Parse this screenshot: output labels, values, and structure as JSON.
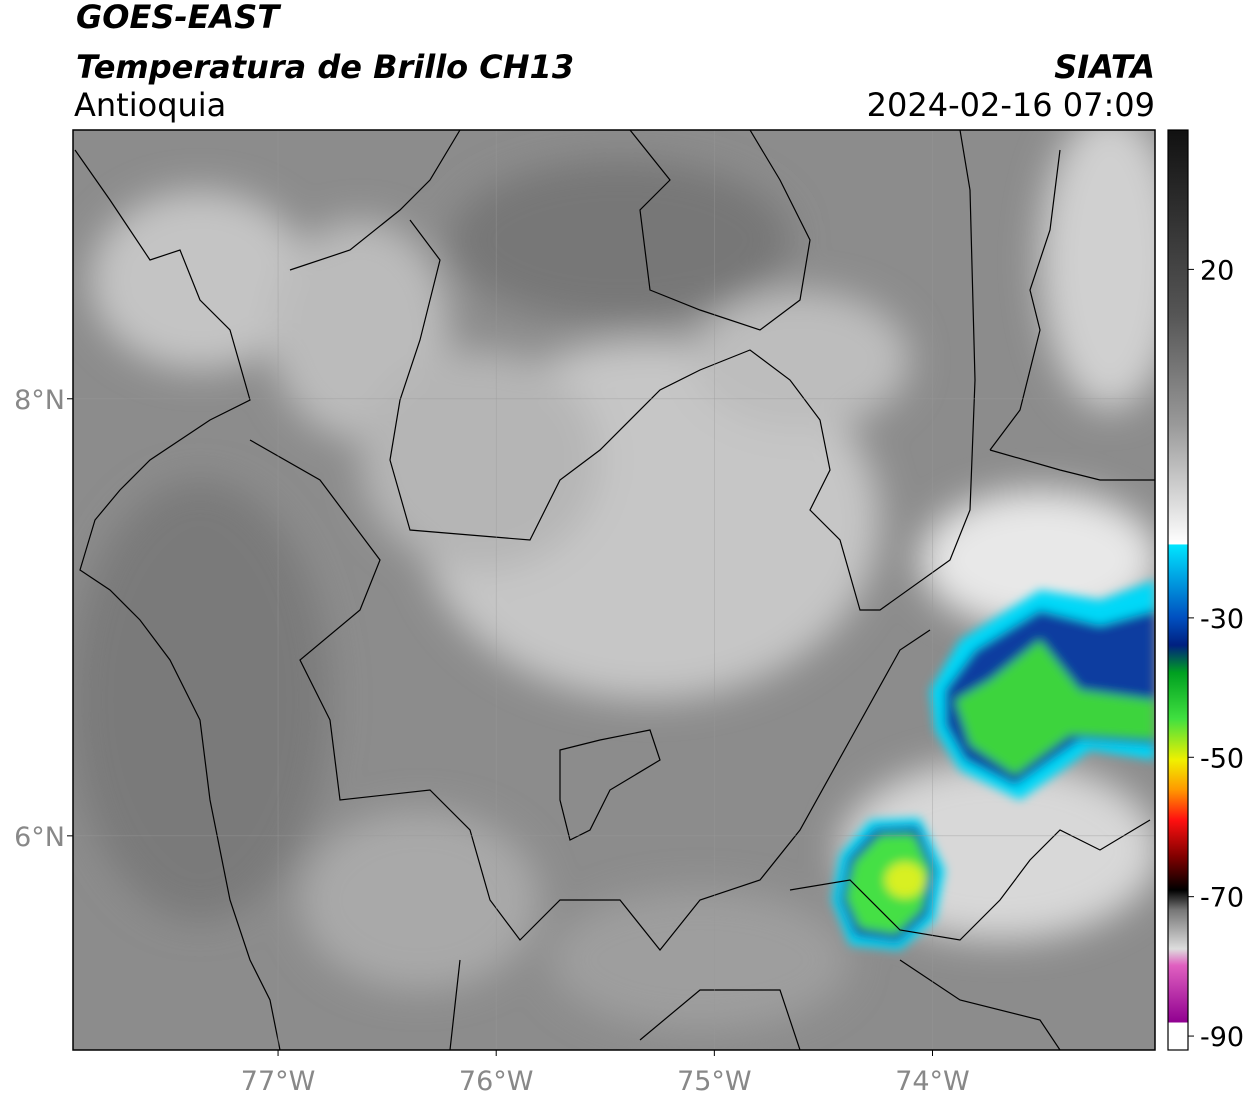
{
  "header": {
    "title": "GOES-EAST",
    "subtitle": "Temperatura de Brillo CH13",
    "region": "Antioquia",
    "source": "SIATA",
    "timestamp": "2024-02-16 07:09"
  },
  "map": {
    "xlim": [
      -77.94,
      -72.98
    ],
    "ylim": [
      5.02,
      9.23
    ],
    "xticks": [
      {
        "value": -77,
        "label": "77°W"
      },
      {
        "value": -76,
        "label": "76°W"
      },
      {
        "value": -75,
        "label": "75°W"
      },
      {
        "value": -74,
        "label": "74°W"
      }
    ],
    "yticks": [
      {
        "value": 6,
        "label": "6°N"
      },
      {
        "value": 8,
        "label": "8°N"
      }
    ],
    "grid": true
  },
  "colorbar": {
    "lim": [
      -92,
      40
    ],
    "ticks": [
      -90,
      -70,
      -50,
      -30,
      20
    ]
  }
}
